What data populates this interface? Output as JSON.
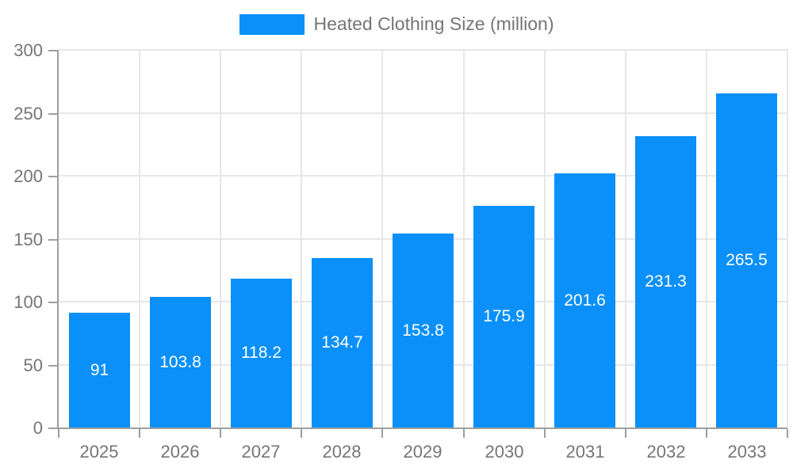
{
  "chart_data": {
    "type": "bar",
    "title": "",
    "legend": "Heated Clothing Size (million)",
    "legend_position": "top",
    "categories": [
      "2025",
      "2026",
      "2027",
      "2028",
      "2029",
      "2030",
      "2031",
      "2032",
      "2033"
    ],
    "values": [
      91,
      103.8,
      118.2,
      134.7,
      153.8,
      175.9,
      201.6,
      231.3,
      265.5
    ],
    "xlabel": "",
    "ylabel": "",
    "ylim": [
      0,
      300
    ],
    "y_ticks": [
      0,
      50,
      100,
      150,
      200,
      250,
      300
    ],
    "grid": "both",
    "value_labels": "inside-center",
    "colors": {
      "bar": "#0a90f8",
      "axis_line": "#9e9e9e",
      "grid_line": "#e7e7e9",
      "tick_label": "#757575",
      "value_label": "#ffffff",
      "background": "#ffffff"
    }
  }
}
